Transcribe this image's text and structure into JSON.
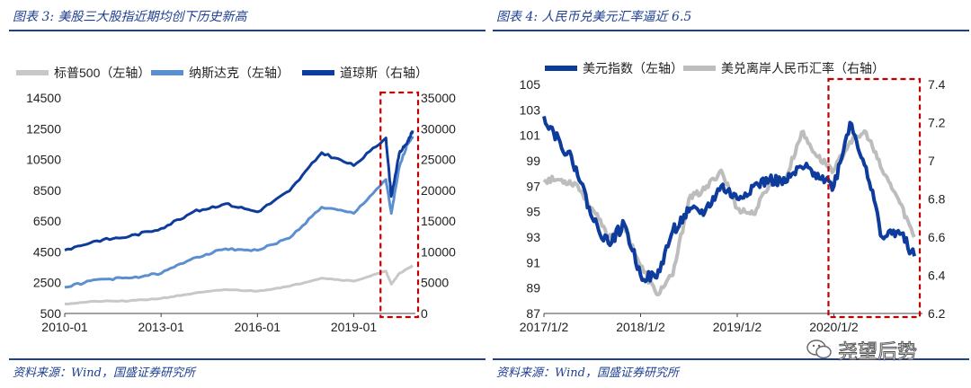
{
  "left": {
    "title": "图表 3:  美股三大股指近期均创下历史新高",
    "source": "资料来源：Wind，国盛证券研究所"
  },
  "right": {
    "title": "图表 4:  人民币兑美元汇率逼近 6.5",
    "source": "资料来源：Wind，国盛证券研究所"
  },
  "watermark": {
    "text": "尧望后势",
    "icon": "wechat-icon"
  },
  "colors": {
    "heading": "#1d3f8f",
    "highlight_box": "#c00000"
  },
  "chart_data": [
    {
      "type": "line",
      "title": "美股三大股指近期均创下历史新高",
      "x_ticks": [
        "2010-01",
        "2013-01",
        "2016-01",
        "2019-01"
      ],
      "ylim_left": [
        500,
        14500
      ],
      "yticks_left": [
        500,
        2500,
        4500,
        6500,
        8500,
        10500,
        12500,
        14500
      ],
      "ylim_right": [
        0,
        35000
      ],
      "yticks_right": [
        0,
        5000,
        10000,
        15000,
        20000,
        25000,
        30000,
        35000
      ],
      "legend_position": "top",
      "series": [
        {
          "name": "标普500（左轴）",
          "axis": "left",
          "color": "#c8c8c8",
          "x": [
            "2010-01",
            "2011-01",
            "2012-01",
            "2013-01",
            "2014-01",
            "2015-01",
            "2016-01",
            "2017-01",
            "2018-01",
            "2019-01",
            "2020-01",
            "2020-03",
            "2020-06",
            "2020-09",
            "2020-11"
          ],
          "y": [
            1120,
            1290,
            1310,
            1480,
            1800,
            2050,
            1950,
            2270,
            2800,
            2600,
            3250,
            2400,
            3100,
            3400,
            3600
          ]
        },
        {
          "name": "纳斯达克（左轴）",
          "axis": "left",
          "color": "#5b8fd0",
          "x": [
            "2010-01",
            "2011-01",
            "2012-01",
            "2013-01",
            "2014-01",
            "2015-01",
            "2016-01",
            "2017-01",
            "2018-01",
            "2019-01",
            "2020-01",
            "2020-03",
            "2020-06",
            "2020-09",
            "2020-11"
          ],
          "y": [
            2200,
            2700,
            2800,
            3100,
            4100,
            4700,
            4600,
            5400,
            7400,
            7000,
            9200,
            7000,
            10000,
            11500,
            12000
          ]
        },
        {
          "name": "道琼斯（右轴）",
          "axis": "right",
          "color": "#0d3c9c",
          "x": [
            "2010-01",
            "2011-01",
            "2012-01",
            "2013-01",
            "2014-01",
            "2015-01",
            "2016-01",
            "2017-01",
            "2018-01",
            "2019-01",
            "2020-01",
            "2020-03",
            "2020-06",
            "2020-09",
            "2020-11"
          ],
          "y": [
            10300,
            11800,
            12500,
            13800,
            16500,
            17800,
            16500,
            19900,
            26100,
            24000,
            28500,
            19000,
            26000,
            27800,
            29700
          ]
        }
      ],
      "highlight": {
        "from": "2020-01",
        "to": "2020-11"
      }
    },
    {
      "type": "line",
      "title": "人民币兑美元汇率逼近 6.5",
      "x_ticks": [
        "2017/1/2",
        "2018/1/2",
        "2019/1/2",
        "2020/1/2"
      ],
      "ylim_left": [
        87,
        105
      ],
      "yticks_left": [
        87,
        89,
        91,
        93,
        95,
        97,
        99,
        101,
        103,
        105
      ],
      "ylim_right": [
        6.2,
        7.4
      ],
      "yticks_right": [
        6.2,
        6.4,
        6.6,
        6.8,
        7,
        7.2,
        7.4
      ],
      "legend_position": "top",
      "series": [
        {
          "name": "美元指数（左轴）",
          "axis": "left",
          "color": "#0d3c9c",
          "x": [
            "2017-01",
            "2017-03",
            "2017-05",
            "2017-07",
            "2017-09",
            "2017-11",
            "2018-01",
            "2018-03",
            "2018-05",
            "2018-07",
            "2018-09",
            "2018-11",
            "2019-01",
            "2019-03",
            "2019-05",
            "2019-07",
            "2019-09",
            "2019-11",
            "2020-01",
            "2020-03",
            "2020-05",
            "2020-07",
            "2020-09",
            "2020-11"
          ],
          "y": [
            102.5,
            100.5,
            98.5,
            94.5,
            92.5,
            94,
            90,
            89.8,
            93.5,
            95,
            95,
            97,
            96,
            97,
            97.5,
            97.3,
            98.5,
            98,
            97,
            102,
            98.5,
            93,
            93.5,
            91.5
          ]
        },
        {
          "name": "美兑离岸人民币汇率（右轴）",
          "axis": "right",
          "color": "#bdbdbd",
          "x": [
            "2017-01",
            "2017-03",
            "2017-05",
            "2017-07",
            "2017-09",
            "2017-11",
            "2018-01",
            "2018-03",
            "2018-05",
            "2018-07",
            "2018-09",
            "2018-11",
            "2019-01",
            "2019-03",
            "2019-05",
            "2019-07",
            "2019-09",
            "2019-11",
            "2020-01",
            "2020-03",
            "2020-05",
            "2020-07",
            "2020-09",
            "2020-11"
          ],
          "y": [
            6.9,
            6.9,
            6.88,
            6.75,
            6.6,
            6.65,
            6.45,
            6.3,
            6.4,
            6.8,
            6.85,
            6.95,
            6.75,
            6.72,
            6.88,
            6.9,
            7.15,
            7.02,
            6.95,
            7.1,
            7.15,
            6.95,
            6.8,
            6.6
          ]
        }
      ],
      "highlight": {
        "from": "2020-01",
        "to": "2020-11"
      }
    }
  ]
}
